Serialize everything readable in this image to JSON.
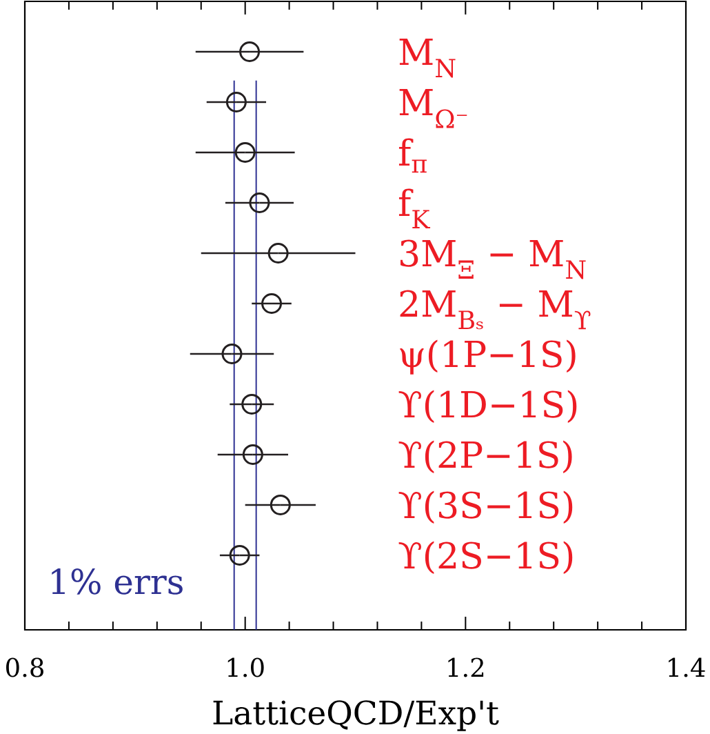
{
  "chart_data": {
    "type": "scatter",
    "orientation": "horizontal",
    "xlabel": "LatticeQCD/Exp't",
    "categories": [
      "M$_{N}$",
      "M$_{Ω⁻}$",
      "f$_{π}$",
      "f$_{K}$",
      "3M$_{Ξ}$ − M$_{N}$",
      "2M$_{Bₛ}$ − M$_{ϒ}$",
      "ψ(1P−1S)",
      "ϒ(1D−1S)",
      "ϒ(2P−1S)",
      "ϒ(3S−1S)",
      "ϒ(2S−1S)"
    ],
    "values": [
      1.004,
      0.992,
      1.0,
      1.013,
      1.03,
      1.024,
      0.988,
      1.006,
      1.007,
      1.032,
      0.995
    ],
    "errors": [
      0.049,
      0.027,
      0.045,
      0.031,
      0.07,
      0.018,
      0.038,
      0.02,
      0.032,
      0.032,
      0.018
    ],
    "color": "#231f20",
    "marker": "circle",
    "xlim": [
      0.8,
      1.4
    ],
    "xticks": [
      0.8,
      {
        "value": 0.84,
        "label": null
      },
      {
        "value": 0.88,
        "label": null
      },
      {
        "value": 0.92,
        "label": null
      },
      {
        "value": 0.96,
        "label": null
      },
      {
        "value": 1.0,
        "label": "1.0"
      },
      {
        "value": 1.04,
        "label": null
      },
      {
        "value": 1.08,
        "label": null
      },
      {
        "value": 1.12,
        "label": null
      },
      {
        "value": 1.16,
        "label": null
      },
      1.2,
      {
        "value": 1.24,
        "label": null
      },
      {
        "value": 1.28,
        "label": null
      },
      {
        "value": 1.32,
        "label": null
      },
      {
        "value": 1.36,
        "label": null
      },
      1.4
    ],
    "ref_lines": [
      {
        "axis": "x",
        "value": 0.99,
        "color": "#2e3192"
      },
      {
        "axis": "x",
        "value": 1.01,
        "color": "#2e3192"
      }
    ],
    "annotations": [
      "1% errs"
    ]
  }
}
